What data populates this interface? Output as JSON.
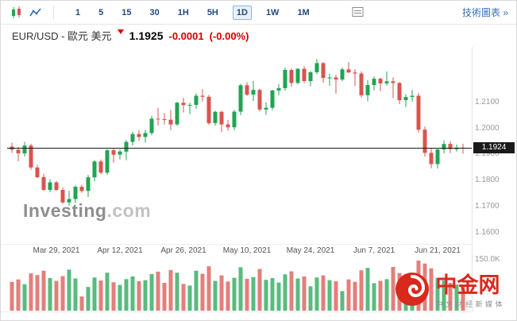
{
  "toolbar": {
    "chart_type_icons": [
      "candlestick-icon",
      "line-chart-icon"
    ],
    "intervals": [
      "1",
      "5",
      "15",
      "30",
      "1H",
      "5H",
      "1D",
      "1W",
      "1M"
    ],
    "active_interval": "1D",
    "indicators_icon": "indicators-icon",
    "technical_chart_link": "技術圖表 »"
  },
  "quote": {
    "title": "EUR/USD - 歐元 美元",
    "last": "1.1925",
    "change": "-0.0001",
    "change_percent": "(-0.00%)",
    "direction": "down"
  },
  "watermark": {
    "primary": "Investing",
    "secondary": ".com"
  },
  "brand": {
    "name": "中金网",
    "tagline": "中文财经新媒体"
  },
  "colors": {
    "up": "#21a453",
    "down": "#d9544f",
    "interval_text": "#234a7d",
    "link_blue": "#3a6fb7",
    "change_red": "#d40000",
    "brand_red": "#d8291c",
    "price_line": "#1a1a1a"
  },
  "chart_data": {
    "type": "candlestick",
    "symbol": "EUR/USD",
    "interval": "1D",
    "current_price": 1.1924,
    "current_price_label": "1.1924",
    "y_axis": {
      "range": [
        1.156,
        1.23
      ],
      "ticks": [
        {
          "value": 1.21,
          "label": "1.2100"
        },
        {
          "value": 1.2,
          "label": "1.2000"
        },
        {
          "value": 1.19,
          "label": "1.1900"
        },
        {
          "value": 1.18,
          "label": "1.1800"
        },
        {
          "value": 1.17,
          "label": "1.1700"
        },
        {
          "value": 1.16,
          "label": "1.1600"
        }
      ]
    },
    "x_axis": {
      "ticks": [
        {
          "index": 7,
          "label": "Mar 29, 2021"
        },
        {
          "index": 17,
          "label": "Apr 12, 2021"
        },
        {
          "index": 27,
          "label": "Apr 26, 2021"
        },
        {
          "index": 37,
          "label": "May 10, 2021"
        },
        {
          "index": 47,
          "label": "May 24, 2021"
        },
        {
          "index": 57,
          "label": "Jun 7, 2021"
        },
        {
          "index": 67,
          "label": "Jun 21, 2021"
        }
      ]
    },
    "volume_axis": {
      "max_k": 150,
      "top_label": "150.0K"
    },
    "candle_fields": [
      "date",
      "open",
      "high",
      "low",
      "close",
      "volume_k"
    ],
    "candles": [
      [
        "Mar 18",
        1.193,
        1.1945,
        1.1906,
        1.1918,
        85
      ],
      [
        "Mar 19",
        1.1918,
        1.1928,
        1.1874,
        1.1904,
        92
      ],
      [
        "Mar 22",
        1.1904,
        1.1948,
        1.1892,
        1.1934,
        78
      ],
      [
        "Mar 23",
        1.1934,
        1.1941,
        1.1841,
        1.185,
        110
      ],
      [
        "Mar 24",
        1.185,
        1.186,
        1.1809,
        1.1813,
        105
      ],
      [
        "Mar 25",
        1.1813,
        1.1825,
        1.176,
        1.1764,
        118
      ],
      [
        "Mar 26",
        1.1764,
        1.1805,
        1.1755,
        1.1793,
        96
      ],
      [
        "Mar 29",
        1.1793,
        1.1798,
        1.1761,
        1.1764,
        88
      ],
      [
        "Mar 30",
        1.1764,
        1.1774,
        1.1711,
        1.1716,
        102
      ],
      [
        "Mar 31",
        1.1716,
        1.176,
        1.1704,
        1.1729,
        121
      ],
      [
        "Apr 1",
        1.1729,
        1.1781,
        1.1713,
        1.1776,
        95
      ],
      [
        "Apr 2",
        1.1776,
        1.1784,
        1.1753,
        1.176,
        42
      ],
      [
        "Apr 5",
        1.176,
        1.1821,
        1.1737,
        1.1812,
        70
      ],
      [
        "Apr 6",
        1.1812,
        1.1878,
        1.1797,
        1.1873,
        98
      ],
      [
        "Apr 7",
        1.1873,
        1.188,
        1.1824,
        1.183,
        89
      ],
      [
        "Apr 8",
        1.183,
        1.192,
        1.1822,
        1.1916,
        112
      ],
      [
        "Apr 9",
        1.1916,
        1.1924,
        1.1868,
        1.1899,
        84
      ],
      [
        "Apr 12",
        1.1899,
        1.192,
        1.1881,
        1.1911,
        76
      ],
      [
        "Apr 13",
        1.1911,
        1.1955,
        1.1878,
        1.1948,
        93
      ],
      [
        "Apr 14",
        1.1948,
        1.1987,
        1.1935,
        1.1978,
        101
      ],
      [
        "Apr 15",
        1.1978,
        1.1993,
        1.1952,
        1.1967,
        87
      ],
      [
        "Apr 16",
        1.1967,
        1.1995,
        1.1945,
        1.1982,
        90
      ],
      [
        "Apr 19",
        1.1982,
        1.2048,
        1.1974,
        1.2037,
        108
      ],
      [
        "Apr 20",
        1.2037,
        1.2079,
        1.2011,
        1.2035,
        115
      ],
      [
        "Apr 21",
        1.2035,
        1.2059,
        1.2015,
        1.2033,
        82
      ],
      [
        "Apr 22",
        1.2033,
        1.207,
        1.1993,
        1.2015,
        120
      ],
      [
        "Apr 23",
        1.2015,
        1.2101,
        1.201,
        1.2098,
        112
      ],
      [
        "Apr 26",
        1.2098,
        1.2117,
        1.2061,
        1.2089,
        79
      ],
      [
        "Apr 27",
        1.2089,
        1.2098,
        1.2055,
        1.209,
        74
      ],
      [
        "Apr 28",
        1.209,
        1.2134,
        1.2075,
        1.2125,
        118
      ],
      [
        "Apr 29",
        1.2125,
        1.215,
        1.2103,
        1.2121,
        109
      ],
      [
        "Apr 30",
        1.2121,
        1.2128,
        1.2013,
        1.202,
        131
      ],
      [
        "May 3",
        1.202,
        1.2068,
        1.201,
        1.2063,
        88
      ],
      [
        "May 4",
        1.2063,
        1.2067,
        1.1986,
        1.2015,
        104
      ],
      [
        "May 5",
        1.2015,
        1.2032,
        1.1992,
        1.2004,
        86
      ],
      [
        "May 6",
        1.2004,
        1.2071,
        1.1993,
        1.2064,
        97
      ],
      [
        "May 7",
        1.2064,
        1.2171,
        1.2051,
        1.2165,
        128
      ],
      [
        "May 10",
        1.2165,
        1.2177,
        1.2124,
        1.2129,
        94
      ],
      [
        "May 11",
        1.2129,
        1.2182,
        1.2105,
        1.2147,
        99
      ],
      [
        "May 12",
        1.2147,
        1.2152,
        1.2065,
        1.2072,
        123
      ],
      [
        "May 13",
        1.2072,
        1.21,
        1.2051,
        1.2079,
        91
      ],
      [
        "May 14",
        1.2079,
        1.2148,
        1.207,
        1.2145,
        96
      ],
      [
        "May 17",
        1.2145,
        1.2169,
        1.2127,
        1.2154,
        83
      ],
      [
        "May 18",
        1.2154,
        1.2233,
        1.2144,
        1.2224,
        107
      ],
      [
        "May 19",
        1.2224,
        1.223,
        1.216,
        1.2174,
        116
      ],
      [
        "May 20",
        1.2174,
        1.2231,
        1.2168,
        1.2228,
        95
      ],
      [
        "May 21",
        1.2228,
        1.2238,
        1.2173,
        1.2181,
        101
      ],
      [
        "May 24",
        1.2181,
        1.2219,
        1.2161,
        1.2215,
        72
      ],
      [
        "May 25",
        1.2215,
        1.2266,
        1.2207,
        1.225,
        98
      ],
      [
        "May 26",
        1.225,
        1.2254,
        1.2175,
        1.2193,
        104
      ],
      [
        "May 27",
        1.2193,
        1.221,
        1.2163,
        1.2195,
        90
      ],
      [
        "May 28",
        1.2195,
        1.2205,
        1.2133,
        1.2187,
        87
      ],
      [
        "May 31",
        1.2187,
        1.2233,
        1.2181,
        1.2226,
        58
      ],
      [
        "Jun 1",
        1.2226,
        1.2254,
        1.2212,
        1.2214,
        92
      ],
      [
        "Jun 2",
        1.2214,
        1.2227,
        1.2163,
        1.221,
        85
      ],
      [
        "Jun 3",
        1.221,
        1.2218,
        1.2118,
        1.2127,
        119
      ],
      [
        "Jun 4",
        1.2127,
        1.2185,
        1.2104,
        1.2166,
        126
      ],
      [
        "Jun 7",
        1.2166,
        1.2199,
        1.2145,
        1.219,
        81
      ],
      [
        "Jun 8",
        1.219,
        1.2195,
        1.2143,
        1.2172,
        88
      ],
      [
        "Jun 9",
        1.2172,
        1.2218,
        1.2164,
        1.218,
        93
      ],
      [
        "Jun 10",
        1.218,
        1.2195,
        1.2116,
        1.2174,
        129
      ],
      [
        "Jun 11",
        1.2174,
        1.2178,
        1.2093,
        1.2108,
        111
      ],
      [
        "Jun 14",
        1.2108,
        1.2131,
        1.2082,
        1.212,
        84
      ],
      [
        "Jun 15",
        1.212,
        1.2148,
        1.2103,
        1.2125,
        79
      ],
      [
        "Jun 16",
        1.2125,
        1.2136,
        1.1984,
        1.1995,
        148
      ],
      [
        "Jun 17",
        1.1995,
        1.2007,
        1.1891,
        1.1906,
        139
      ],
      [
        "Jun 18",
        1.1906,
        1.1925,
        1.1847,
        1.1863,
        125
      ],
      [
        "Jun 21",
        1.1863,
        1.1922,
        1.1846,
        1.1919,
        97
      ],
      [
        "Jun 22",
        1.1919,
        1.1954,
        1.1904,
        1.194,
        89
      ],
      [
        "Jun 23",
        1.194,
        1.1951,
        1.1905,
        1.192,
        82
      ],
      [
        "Jun 24",
        1.192,
        1.1938,
        1.1911,
        1.1926,
        77
      ],
      [
        "Jun 25",
        1.1926,
        1.1941,
        1.1903,
        1.1925,
        70
      ]
    ]
  }
}
